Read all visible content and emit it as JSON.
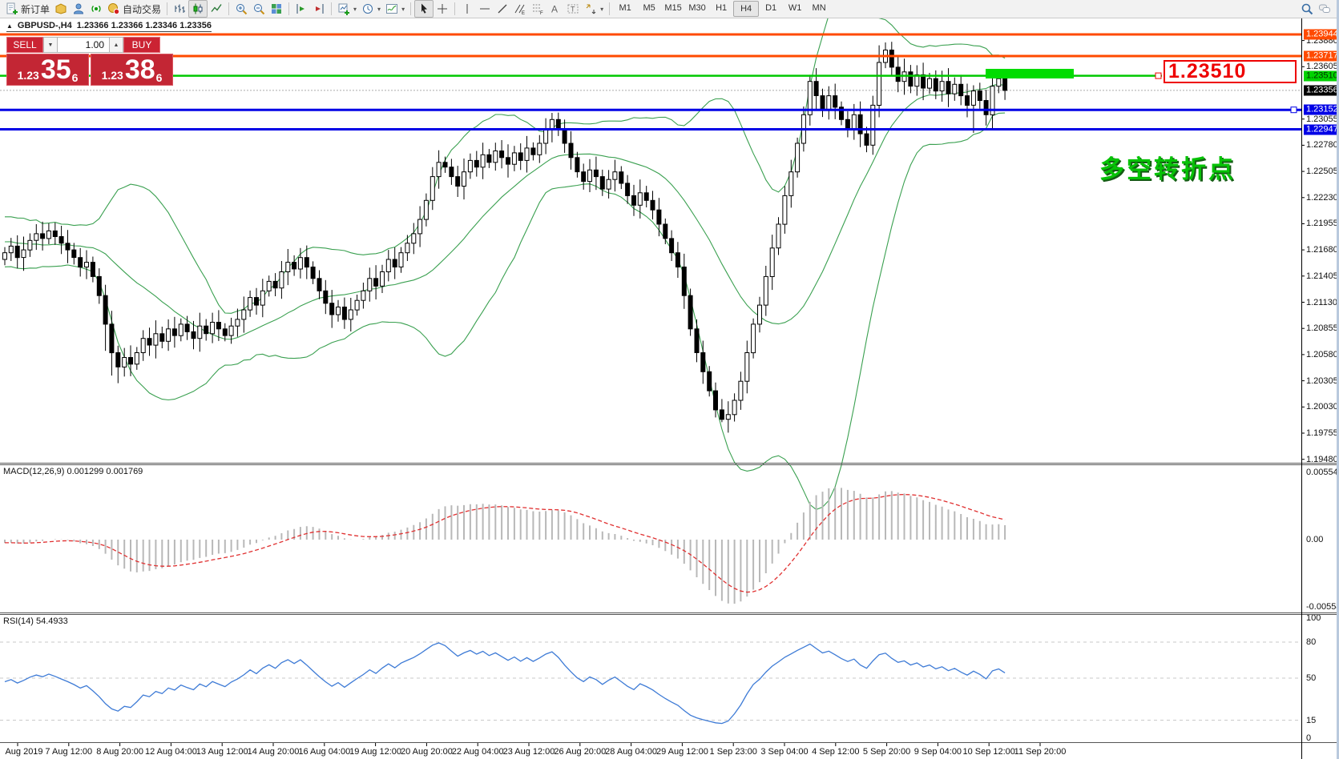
{
  "toolbar": {
    "new_order_label": "新订单",
    "autotrading_label": "自动交易",
    "timeframes": [
      "M1",
      "M5",
      "M15",
      "M30",
      "H1",
      "H4",
      "D1",
      "W1",
      "MN"
    ],
    "active_timeframe": "H4"
  },
  "chart": {
    "title": "GBPUSD-,H4",
    "ohlc_info": "1.23366 1.23366 1.23346 1.23356",
    "annotation": "多空转折点",
    "price_tag": "1.23510",
    "bid_price": 1.23356
  },
  "one_click": {
    "sell_label": "SELL",
    "buy_label": "BUY",
    "volume": "1.00",
    "sell_small": "1.23",
    "sell_big": "35",
    "sell_sup": "6",
    "buy_small": "1.23",
    "buy_big": "38",
    "buy_sup": "6"
  },
  "hlines": [
    {
      "price": 1.23944,
      "type": "orange"
    },
    {
      "price": 1.23717,
      "type": "orange"
    },
    {
      "price": 1.2351,
      "type": "green"
    },
    {
      "price": 1.23152,
      "type": "blue"
    },
    {
      "price": 1.22947,
      "type": "blue"
    }
  ],
  "price_scale": {
    "badges": [
      {
        "text": "1.23944",
        "type": "orange"
      },
      {
        "text": "1.23717",
        "type": "orange"
      },
      {
        "text": "1.23510",
        "type": "green"
      },
      {
        "text": "1.23356",
        "type": "bid"
      },
      {
        "text": "1.23152",
        "type": "blue"
      },
      {
        "text": "1.22947",
        "type": "blue"
      }
    ],
    "ticks": [
      "1.23880",
      "1.23605",
      "1.23055",
      "1.22780",
      "1.22505",
      "1.22230",
      "1.21955",
      "1.21680",
      "1.21405",
      "1.21130",
      "1.20855",
      "1.20580",
      "1.20305",
      "1.20030",
      "1.19755",
      "1.19480"
    ]
  },
  "macd": {
    "label": "MACD(12,26,9)",
    "values": "0.001299 0.001769",
    "scale_top": "0.005543",
    "scale_zero": "0.00",
    "scale_bottom": "-0.005583",
    "fast": 12,
    "slow": 26,
    "signal": 9
  },
  "rsi": {
    "label": "RSI(14)",
    "value": "54.4933",
    "period": 14,
    "levels": [
      80,
      50,
      15
    ],
    "scale": [
      "100",
      "80",
      "50",
      "15",
      "0"
    ]
  },
  "time_axis": [
    "Aug 2019",
    "7 Aug 12:00",
    "8 Aug 20:00",
    "12 Aug 04:00",
    "13 Aug 12:00",
    "14 Aug 20:00",
    "16 Aug 04:00",
    "19 Aug 12:00",
    "20 Aug 20:00",
    "22 Aug 04:00",
    "23 Aug 12:00",
    "26 Aug 20:00",
    "28 Aug 04:00",
    "29 Aug 12:00",
    "1 Sep 23:00",
    "3 Sep 04:00",
    "4 Sep 12:00",
    "5 Sep 20:00",
    "9 Sep 04:00",
    "10 Sep 12:00",
    "11 Sep 20:00"
  ],
  "chart_data": {
    "type": "candlestick",
    "symbol": "GBPUSD",
    "timeframe": "H4",
    "bollinger": {
      "period": 20,
      "deviation": 2
    },
    "first_open": 1.2158,
    "pre_closes": [
      1.2185,
      1.217,
      1.219,
      1.2175,
      1.2195,
      1.218,
      1.22,
      1.2185,
      1.217,
      1.219,
      1.216,
      1.2185,
      1.2155,
      1.218,
      1.215,
      1.2175,
      1.2165,
      1.219,
      1.217,
      1.218
    ],
    "closes": [
      1.2165,
      1.2172,
      1.216,
      1.2168,
      1.2178,
      1.2185,
      1.218,
      1.2188,
      1.2182,
      1.2175,
      1.2168,
      1.216,
      1.215,
      1.2155,
      1.214,
      1.212,
      1.209,
      1.206,
      1.2045,
      1.2055,
      1.2048,
      1.206,
      1.2075,
      1.2068,
      1.208,
      1.2072,
      1.2085,
      1.2078,
      1.209,
      1.2082,
      1.2075,
      1.2088,
      1.208,
      1.2092,
      1.2085,
      1.2078,
      1.2088,
      1.2095,
      1.2105,
      1.2118,
      1.211,
      1.2125,
      1.2135,
      1.2128,
      1.2145,
      1.2155,
      1.2148,
      1.216,
      1.215,
      1.2138,
      1.2125,
      1.2112,
      1.21,
      1.2108,
      1.2095,
      1.2105,
      1.2115,
      1.2125,
      1.2138,
      1.213,
      1.2145,
      1.2158,
      1.215,
      1.2165,
      1.2175,
      1.2185,
      1.22,
      1.222,
      1.2245,
      1.226,
      1.2255,
      1.2245,
      1.2235,
      1.225,
      1.2262,
      1.2255,
      1.2268,
      1.226,
      1.2272,
      1.2265,
      1.2258,
      1.227,
      1.2262,
      1.2275,
      1.2268,
      1.228,
      1.2295,
      1.2305,
      1.2295,
      1.228,
      1.2265,
      1.225,
      1.224,
      1.2252,
      1.2245,
      1.2232,
      1.2242,
      1.225,
      1.2238,
      1.2225,
      1.2215,
      1.2228,
      1.222,
      1.221,
      1.2195,
      1.218,
      1.2165,
      1.215,
      1.212,
      1.2085,
      1.206,
      1.204,
      1.202,
      1.2,
      1.199,
      1.1995,
      1.201,
      1.203,
      1.206,
      1.209,
      1.211,
      1.214,
      1.217,
      1.2195,
      1.2225,
      1.225,
      1.228,
      1.231,
      1.2345,
      1.233,
      1.2315,
      1.233,
      1.2318,
      1.2305,
      1.2295,
      1.231,
      1.229,
      1.2278,
      1.232,
      1.2365,
      1.2378,
      1.236,
      1.2345,
      1.2355,
      1.234,
      1.2352,
      1.2338,
      1.2348,
      1.2335,
      1.2345,
      1.2332,
      1.2342,
      1.233,
      1.232,
      1.2335,
      1.2325,
      1.231,
      1.234,
      1.2348,
      1.23356
    ],
    "wick_overrides": {
      "7": {
        "h": 1.2196
      },
      "16": {
        "l": 1.2062
      },
      "17": {
        "l": 1.2036
      },
      "18": {
        "l": 1.2028
      },
      "87": {
        "h": 1.2312
      },
      "113": {
        "l": 1.1992
      },
      "114": {
        "l": 1.1987
      },
      "128": {
        "h": 1.2352
      },
      "139": {
        "h": 1.2383
      },
      "140": {
        "h": 1.2386
      },
      "154": {
        "l": 1.2291
      }
    }
  },
  "colors": {
    "orange_line": "#ff4a00",
    "green_line": "#00c800",
    "blue_line": "#0000e6",
    "highlight_rect": "#00dc00",
    "price_tag_red": "#ee0000",
    "bollinger": "#3aa050",
    "candle_up": "#ffffff",
    "candle_down": "#000000",
    "macd_bar": "#b8b8b8",
    "macd_signal": "#e03030",
    "rsi_line": "#3e7bd6",
    "bid_dotted": "#aaaaaa"
  }
}
